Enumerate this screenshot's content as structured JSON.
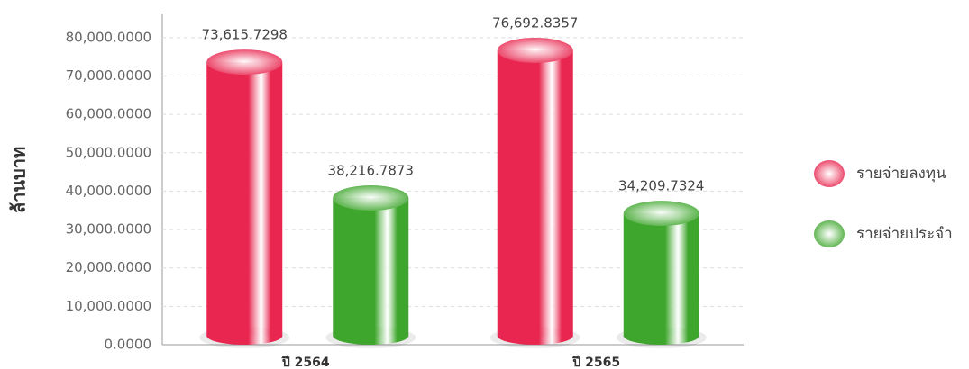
{
  "chart_data": {
    "type": "bar",
    "y_label": "ล้านบาท",
    "categories": [
      "ปี 2564",
      "ปี 2565"
    ],
    "series": [
      {
        "name": "รายจ่ายลงทุน",
        "color": "#e8264f",
        "values": [
          73615.7298,
          76692.8357
        ],
        "value_labels": [
          "73,615.7298",
          "76,692.8357"
        ]
      },
      {
        "name": "รายจ่ายประจำ",
        "color": "#3ea62c",
        "values": [
          38216.7873,
          34209.7324
        ],
        "value_labels": [
          "38,216.7873",
          "34,209.7324"
        ]
      }
    ],
    "ylim": [
      0,
      86300
    ],
    "yticks": [
      {
        "value": 0,
        "label": "0.0000"
      },
      {
        "value": 10000,
        "label": "10,000.0000"
      },
      {
        "value": 20000,
        "label": "20,000.0000"
      },
      {
        "value": 30000,
        "label": "30,000.0000"
      },
      {
        "value": 40000,
        "label": "40,000.0000"
      },
      {
        "value": 50000,
        "label": "50,000.0000"
      },
      {
        "value": 60000,
        "label": "60,000.0000"
      },
      {
        "value": 70000,
        "label": "70,000.0000"
      },
      {
        "value": 80000,
        "label": "80,000.0000"
      }
    ],
    "grid": true,
    "legend": "right"
  }
}
